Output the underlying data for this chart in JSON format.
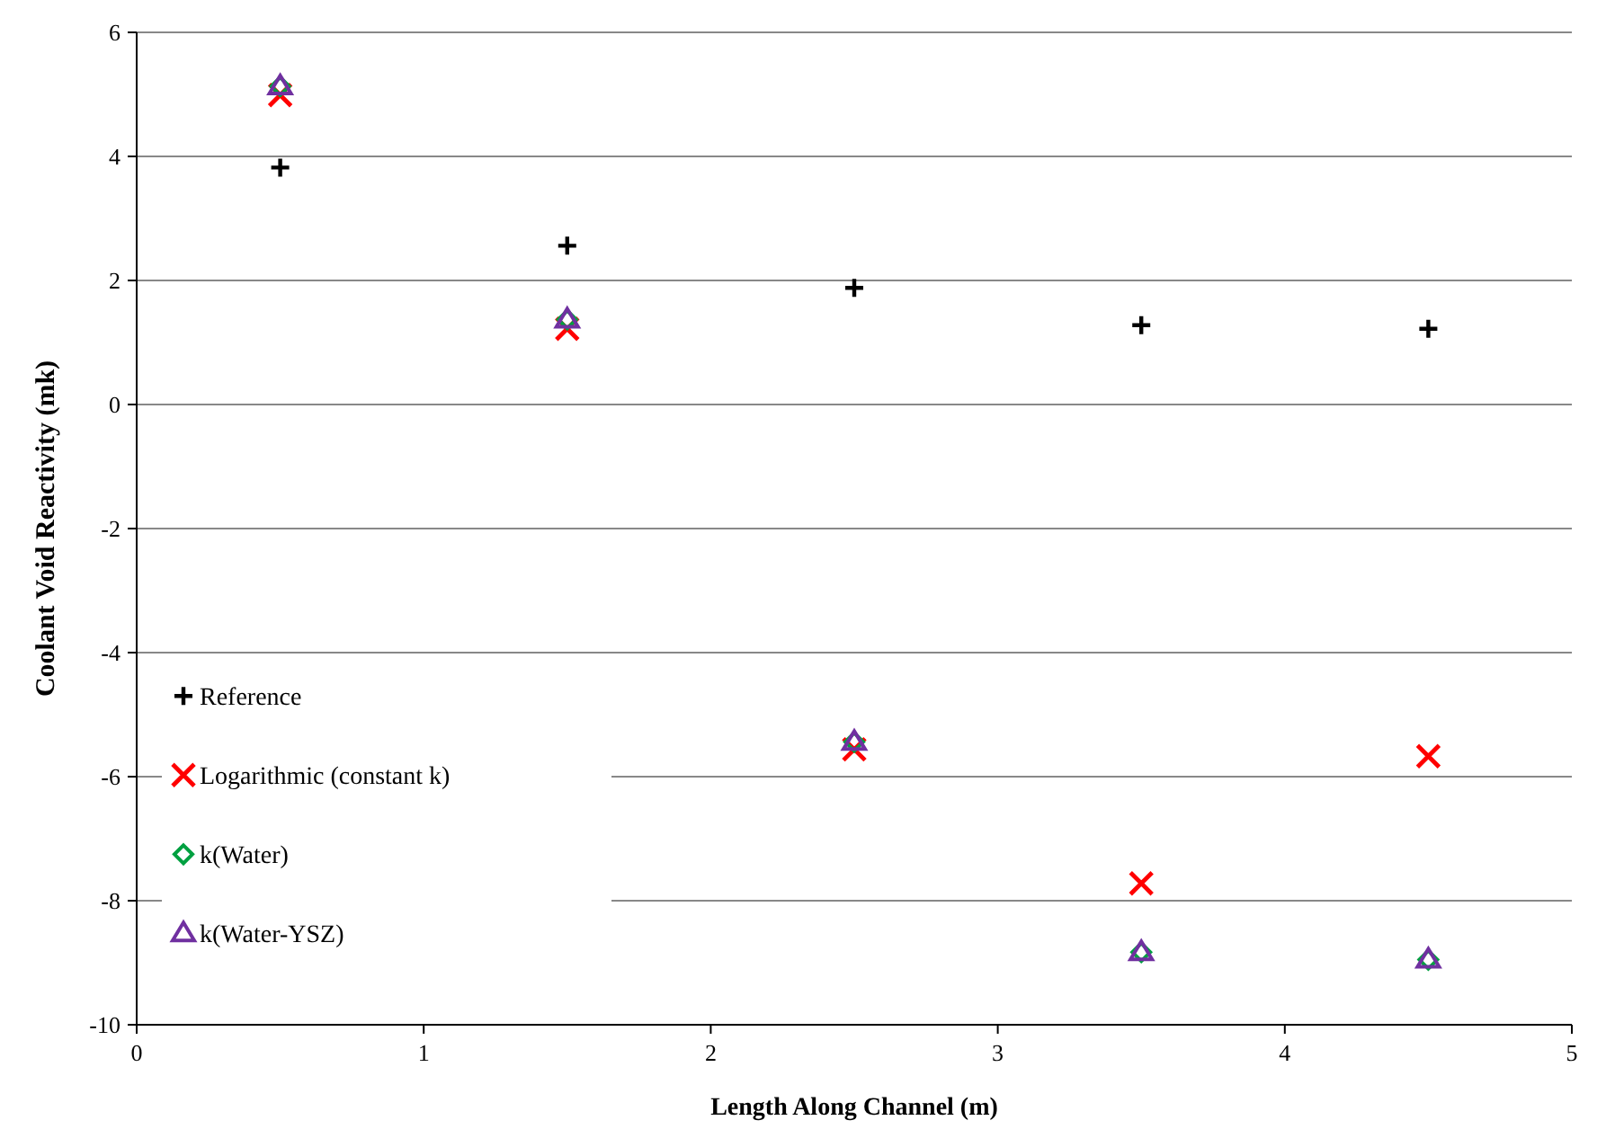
{
  "chart_data": {
    "type": "scatter",
    "xlabel": "Length Along Channel (m)",
    "ylabel": "Coolant Void Reactivity (mk)",
    "x": [
      0.5,
      1.5,
      2.5,
      3.5,
      4.5
    ],
    "series": [
      {
        "name": "Reference",
        "color": "#000000",
        "marker": "cross",
        "values": [
          3.82,
          2.56,
          1.88,
          1.28,
          1.22
        ]
      },
      {
        "name": "Logarithmic (constant k)",
        "color": "#ff0000",
        "marker": "x",
        "values": [
          4.99,
          1.22,
          -5.56,
          -7.72,
          -5.67
        ]
      },
      {
        "name": "k(Water)",
        "color": "#00a040",
        "marker": "diamond",
        "values": [
          5.13,
          1.37,
          -5.44,
          -8.83,
          -8.95
        ]
      },
      {
        "name": "k(Water-YSZ)",
        "color": "#7030a0",
        "marker": "triangle",
        "values": [
          5.13,
          1.37,
          -5.44,
          -8.83,
          -8.95
        ]
      }
    ],
    "xlim": [
      0,
      5
    ],
    "xticks": [
      0,
      1,
      2,
      3,
      4,
      5
    ],
    "ylim": [
      -10,
      6
    ],
    "yticks": [
      -10,
      -8,
      -6,
      -4,
      -2,
      0,
      2,
      4,
      6
    ],
    "grid": "y",
    "legend": "bottom left"
  }
}
